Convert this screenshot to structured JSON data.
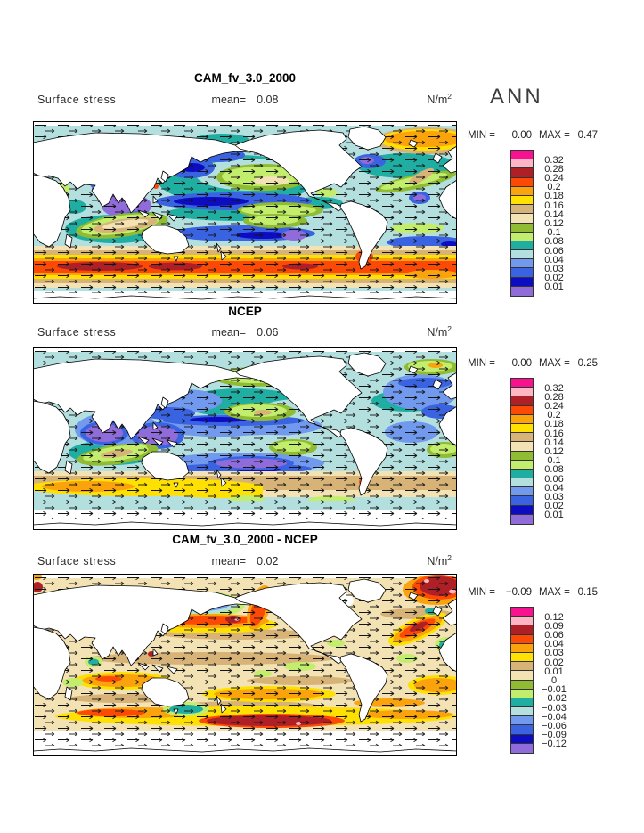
{
  "figure": {
    "season": "ANN",
    "background_color": "#FFFFFF"
  },
  "palette": {
    "swatch_colors_top_to_bottom": [
      "#F8128F",
      "#FDB6C3",
      "#AF2026",
      "#FC4A06",
      "#FBA30C",
      "#FFE003",
      "#D7B377",
      "#F3E2B3",
      "#8FBC33",
      "#C3ED6C",
      "#21AEA2",
      "#B3DFDF",
      "#7199EE",
      "#3A63E2",
      "#0D0CC1",
      "#8F6CD9"
    ]
  },
  "panels": [
    {
      "title": "CAM_fv_3.0_2000",
      "variable_label": "Surface stress",
      "mean_label": "mean=",
      "mean_value": "0.08",
      "units_base": "N/m",
      "units_exponent": "2",
      "min_label": "MIN =",
      "min_value": "0.00",
      "max_label": "MAX =",
      "max_value": "0.47",
      "colorbar_tick_labels": [
        "0.32",
        "0.28",
        "0.24",
        "0.2",
        "0.18",
        "0.16",
        "0.14",
        "0.12",
        "0.1",
        "0.08",
        "0.06",
        "0.04",
        "0.03",
        "0.02",
        "0.01"
      ]
    },
    {
      "title": "NCEP",
      "variable_label": "Surface stress",
      "mean_label": "mean=",
      "mean_value": "0.06",
      "units_base": "N/m",
      "units_exponent": "2",
      "min_label": "MIN =",
      "min_value": "0.00",
      "max_label": "MAX =",
      "max_value": "0.25",
      "colorbar_tick_labels": [
        "0.32",
        "0.28",
        "0.24",
        "0.2",
        "0.18",
        "0.16",
        "0.14",
        "0.12",
        "0.1",
        "0.08",
        "0.06",
        "0.04",
        "0.03",
        "0.02",
        "0.01"
      ]
    },
    {
      "title": "CAM_fv_3.0_2000 - NCEP",
      "variable_label": "Surface stress",
      "mean_label": "mean=",
      "mean_value": "0.02",
      "units_base": "N/m",
      "units_exponent": "2",
      "min_label": "MIN =",
      "min_value": "−0.09",
      "max_label": "MAX =",
      "max_value": "0.15",
      "colorbar_tick_labels": [
        "0.12",
        "0.09",
        "0.06",
        "0.04",
        "0.03",
        "0.02",
        "0.01",
        "0",
        "−0.01",
        "−0.02",
        "−0.03",
        "−0.04",
        "−0.06",
        "−0.09",
        "−0.12"
      ]
    }
  ],
  "chart_data": [
    {
      "type": "heatmap",
      "subtype": "filled-contour global map with wind-stress vector arrows",
      "title": "CAM_fv_3.0_2000",
      "season": "ANN",
      "variable": "Surface stress",
      "units": "N/m^2",
      "mean": 0.08,
      "min": 0.0,
      "max": 0.47,
      "contour_levels": [
        0.01,
        0.02,
        0.03,
        0.04,
        0.06,
        0.08,
        0.1,
        0.12,
        0.14,
        0.16,
        0.18,
        0.2,
        0.24,
        0.28,
        0.32
      ],
      "level_colors_low_to_high": [
        "#8F6CD9",
        "#0D0CC1",
        "#3A63E2",
        "#7199EE",
        "#B3DFDF",
        "#21AEA2",
        "#C3ED6C",
        "#8FBC33",
        "#F3E2B3",
        "#D7B377",
        "#FFE003",
        "#FBA30C",
        "#FC4A06",
        "#AF2026",
        "#FDB6C3",
        "#F8128F"
      ],
      "legend_position": "right",
      "notable_features": "strong Southern Ocean westerly stress maximum band (red/dark red > 0.2); purple minima (< 0.01) in Arabian Sea and south-central Pacific; tan/green subtropical gyres; orange maximum in North Atlantic storm track"
    },
    {
      "type": "heatmap",
      "subtype": "filled-contour global map with wind-stress vector arrows",
      "title": "NCEP",
      "season": "ANN",
      "variable": "Surface stress",
      "units": "N/m^2",
      "mean": 0.06,
      "min": 0.0,
      "max": 0.25,
      "contour_levels": [
        0.01,
        0.02,
        0.03,
        0.04,
        0.06,
        0.08,
        0.1,
        0.12,
        0.14,
        0.16,
        0.18,
        0.2,
        0.24,
        0.28,
        0.32
      ],
      "level_colors_low_to_high": [
        "#8F6CD9",
        "#0D0CC1",
        "#3A63E2",
        "#7199EE",
        "#B3DFDF",
        "#21AEA2",
        "#C3ED6C",
        "#8FBC33",
        "#F3E2B3",
        "#D7B377",
        "#FFE003",
        "#FBA30C",
        "#FC4A06",
        "#AF2026",
        "#FDB6C3",
        "#F8128F"
      ],
      "legend_position": "right",
      "notable_features": "weaker Southern Ocean maximum (orange ~0.2) west of the date line; broad blue/purple low-stress tropics including west Pacific warm pool and Arabian Sea"
    },
    {
      "type": "heatmap",
      "subtype": "filled-contour global difference map with vector arrows",
      "title": "CAM_fv_3.0_2000 - NCEP",
      "season": "ANN",
      "variable": "Surface stress",
      "units": "N/m^2",
      "mean": 0.02,
      "min": -0.09,
      "max": 0.15,
      "contour_levels": [
        -0.12,
        -0.09,
        -0.06,
        -0.04,
        -0.03,
        -0.02,
        -0.01,
        0,
        0.01,
        0.02,
        0.03,
        0.04,
        0.06,
        0.09,
        0.12
      ],
      "level_colors_low_to_high": [
        "#8F6CD9",
        "#0D0CC1",
        "#3A63E2",
        "#7199EE",
        "#B3DFDF",
        "#21AEA2",
        "#C3ED6C",
        "#8FBC33",
        "#F3E2B3",
        "#D7B377",
        "#FFE003",
        "#FBA30C",
        "#FC4A06",
        "#AF2026",
        "#FDB6C3",
        "#F8128F"
      ],
      "legend_position": "right",
      "notable_features": "CAM stronger than NCEP (orange/red) over Southern Ocean, N Pacific and N Atlantic storm tracks and subtropical trades; CAM weaker (blue bullseye) in NW Pacific subtropics; mostly small positive (beige) elsewhere"
    }
  ]
}
